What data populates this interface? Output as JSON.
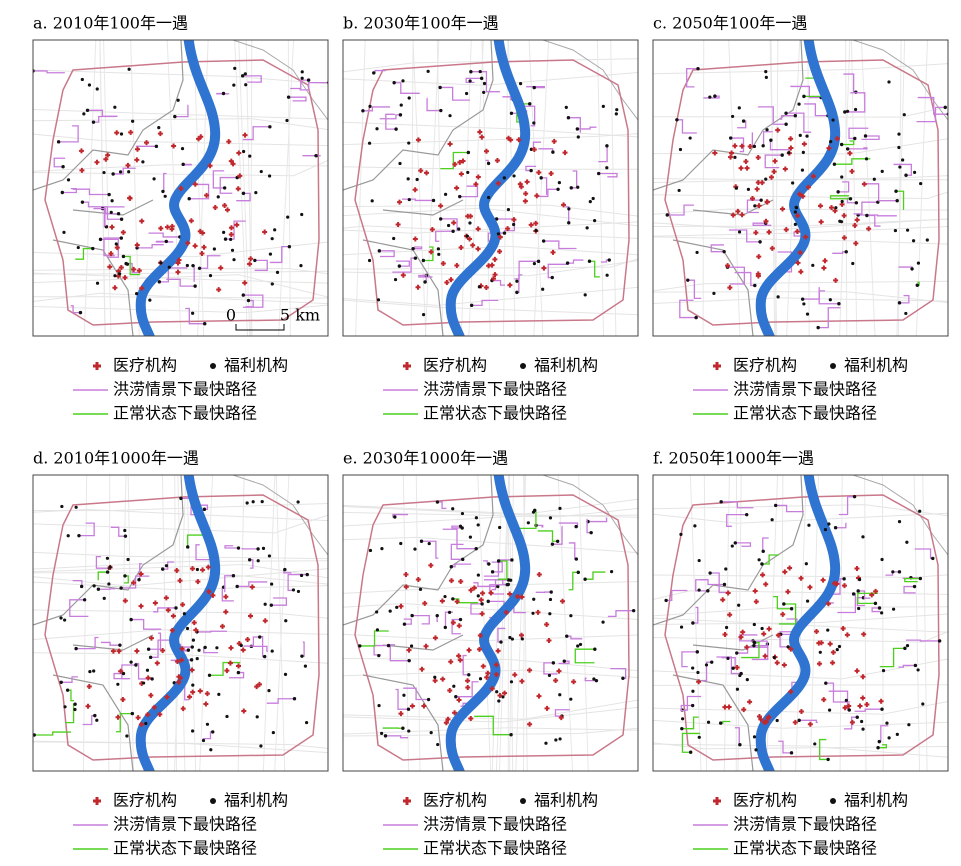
{
  "panels": [
    {
      "title": "a. 2010年100年一遇",
      "legend": {
        "medical": "医疗机构",
        "welfare": "福利机构",
        "flood_route": "洪涝情景下最快路径",
        "normal_route": "正常状态下最快路径"
      }
    },
    {
      "title": "b. 2030年100年一遇",
      "legend": {
        "medical": "医疗机构",
        "welfare": "福利机构",
        "flood_route": "洪涝情景下最快路径",
        "normal_route": "正常状态下最快路径"
      }
    },
    {
      "title": "c. 2050年100年一遇",
      "legend": {
        "medical": "医疗机构",
        "welfare": "福利机构",
        "flood_route": "洪涝情景下最快路径",
        "normal_route": "正常状态下最快路径"
      }
    },
    {
      "title": "d. 2010年1000年一遇",
      "legend": {
        "medical": "医疗机构",
        "welfare": "福利机构",
        "flood_route": "洪涝情景下最快路径",
        "normal_route": "正常状态下最快路径"
      }
    },
    {
      "title": "e. 2030年1000年一遇",
      "legend": {
        "medical": "医疗机构",
        "welfare": "福利机构",
        "flood_route": "洪涝情景下最快路径",
        "normal_route": "正常状态下最快路径"
      }
    },
    {
      "title": "f. 2050年1000年一遇",
      "legend": {
        "medical": "医疗机构",
        "welfare": "福利机构",
        "flood_route": "洪涝情景下最快路径",
        "normal_route": "正常状态下最快路径"
      }
    }
  ],
  "scale_bar": {
    "start": "0",
    "end": "5 km"
  }
}
